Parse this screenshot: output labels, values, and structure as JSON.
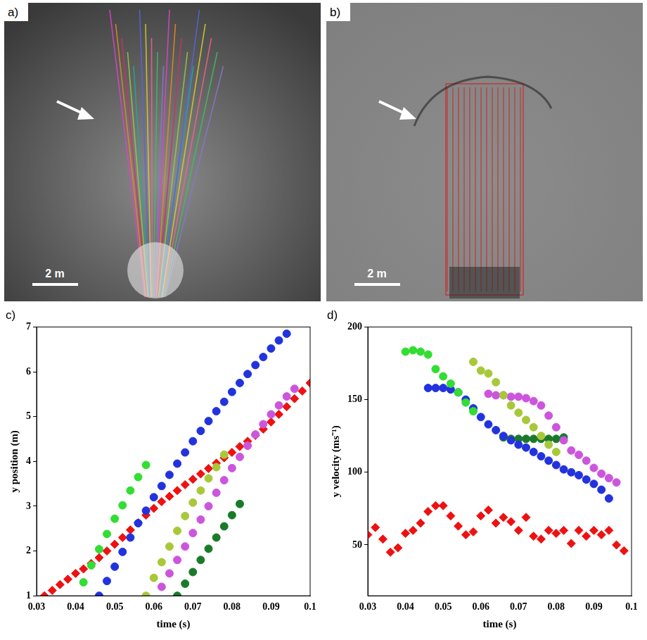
{
  "panels": [
    {
      "letter": "a)",
      "scale_bar": "2 m"
    },
    {
      "letter": "b)",
      "scale_bar": "2 m"
    }
  ],
  "chart_data": [
    {
      "type": "scatter",
      "title": "c)",
      "x_label": "time (s)",
      "y_label": "y position (m)",
      "xlim": [
        0.03,
        0.1
      ],
      "xticks": [
        0.03,
        0.04,
        0.05,
        0.06,
        0.07,
        0.08,
        0.09,
        0.1
      ],
      "ylim": [
        1,
        7
      ],
      "yticks": [
        1,
        2,
        3,
        4,
        5,
        6,
        7
      ],
      "grid": false,
      "series": [
        {
          "color": "#33dd33",
          "marker": "circle",
          "x": [
            0.042,
            0.044,
            0.046,
            0.048,
            0.05,
            0.052,
            0.054,
            0.056,
            0.058
          ],
          "values": [
            1.3,
            1.68,
            2.04,
            2.38,
            2.72,
            3.02,
            3.35,
            3.65,
            3.92
          ]
        },
        {
          "color": "#2233dd",
          "marker": "circle",
          "x": [
            0.046,
            0.048,
            0.05,
            0.052,
            0.054,
            0.056,
            0.058,
            0.06,
            0.062,
            0.064,
            0.066,
            0.068,
            0.07,
            0.072,
            0.074,
            0.076,
            0.078,
            0.08,
            0.082,
            0.084,
            0.086,
            0.088,
            0.09,
            0.092,
            0.094
          ],
          "values": [
            1.0,
            1.33,
            1.65,
            1.98,
            2.3,
            2.62,
            2.9,
            3.2,
            3.45,
            3.7,
            3.95,
            4.2,
            4.45,
            4.68,
            4.9,
            5.12,
            5.33,
            5.55,
            5.75,
            5.95,
            6.15,
            6.33,
            6.52,
            6.7,
            6.85
          ]
        },
        {
          "color": "#a8c83a",
          "marker": "circle",
          "x": [
            0.058,
            0.06,
            0.062,
            0.064,
            0.066,
            0.068,
            0.07,
            0.072,
            0.074,
            0.076,
            0.078
          ],
          "values": [
            1.0,
            1.4,
            1.75,
            2.1,
            2.45,
            2.78,
            3.08,
            3.35,
            3.62,
            3.87,
            4.15
          ]
        },
        {
          "color": "#cc55dd",
          "marker": "circle",
          "x": [
            0.062,
            0.064,
            0.066,
            0.068,
            0.07,
            0.072,
            0.074,
            0.076,
            0.078,
            0.08,
            0.082,
            0.084,
            0.086,
            0.088,
            0.09,
            0.092,
            0.094,
            0.096
          ],
          "values": [
            1.2,
            1.5,
            1.8,
            2.1,
            2.4,
            2.7,
            3.0,
            3.3,
            3.58,
            3.85,
            4.1,
            4.35,
            4.6,
            4.83,
            5.05,
            5.25,
            5.45,
            5.62
          ]
        },
        {
          "color": "#1a7a2a",
          "marker": "circle",
          "x": [
            0.066,
            0.068,
            0.07,
            0.072,
            0.074,
            0.076,
            0.078,
            0.08,
            0.082
          ],
          "values": [
            1.0,
            1.27,
            1.53,
            1.8,
            2.05,
            2.3,
            2.55,
            2.8,
            3.05
          ]
        },
        {
          "color": "#ee1111",
          "marker": "diamond",
          "x": [
            0.032,
            0.034,
            0.036,
            0.038,
            0.04,
            0.042,
            0.044,
            0.046,
            0.048,
            0.05,
            0.052,
            0.054,
            0.056,
            0.058,
            0.06,
            0.062,
            0.064,
            0.066,
            0.068,
            0.07,
            0.072,
            0.074,
            0.076,
            0.078,
            0.08,
            0.082,
            0.084,
            0.086,
            0.088,
            0.09,
            0.092,
            0.094,
            0.096,
            0.098,
            0.1
          ],
          "values": [
            1.0,
            1.12,
            1.25,
            1.37,
            1.5,
            1.6,
            1.72,
            1.85,
            2.0,
            2.15,
            2.3,
            2.47,
            2.63,
            2.8,
            2.95,
            3.1,
            3.22,
            3.35,
            3.48,
            3.6,
            3.72,
            3.84,
            3.96,
            4.08,
            4.2,
            4.33,
            4.45,
            4.58,
            4.72,
            4.88,
            5.05,
            5.22,
            5.4,
            5.57,
            5.75
          ]
        }
      ]
    },
    {
      "type": "scatter",
      "title": "d)",
      "x_label": "time (s)",
      "y_label": "y velocity (ms⁻¹)",
      "xlim": [
        0.03,
        0.1
      ],
      "xticks": [
        0.03,
        0.04,
        0.05,
        0.06,
        0.07,
        0.08,
        0.09,
        0.1
      ],
      "ylim": [
        15,
        200
      ],
      "yticks": [
        50,
        100,
        150,
        200
      ],
      "grid": false,
      "series": [
        {
          "color": "#33dd33",
          "marker": "circle",
          "x": [
            0.04,
            0.042,
            0.044,
            0.046,
            0.048,
            0.05,
            0.052,
            0.054,
            0.056,
            0.058
          ],
          "values": [
            183,
            184,
            183,
            181,
            171,
            166,
            161,
            155,
            148,
            142
          ]
        },
        {
          "color": "#2233dd",
          "marker": "circle",
          "x": [
            0.046,
            0.048,
            0.05,
            0.052,
            0.054,
            0.056,
            0.058,
            0.06,
            0.062,
            0.064,
            0.066,
            0.068,
            0.07,
            0.072,
            0.074,
            0.076,
            0.078,
            0.08,
            0.082,
            0.084,
            0.086,
            0.088,
            0.09,
            0.092,
            0.094
          ],
          "values": [
            158,
            158,
            158,
            157,
            155,
            150,
            144,
            138,
            133,
            129,
            125,
            122,
            119,
            117,
            114,
            111,
            108,
            105,
            102,
            100,
            98,
            95,
            92,
            88,
            82
          ]
        },
        {
          "color": "#a8c83a",
          "marker": "circle",
          "x": [
            0.058,
            0.06,
            0.062,
            0.064,
            0.066,
            0.068,
            0.07,
            0.072,
            0.074,
            0.076,
            0.078,
            0.08
          ],
          "values": [
            176,
            170,
            168,
            162,
            153,
            146,
            141,
            136,
            131,
            125,
            119,
            114
          ]
        },
        {
          "color": "#cc55dd",
          "marker": "circle",
          "x": [
            0.062,
            0.064,
            0.066,
            0.068,
            0.07,
            0.072,
            0.074,
            0.076,
            0.078,
            0.08,
            0.082,
            0.084,
            0.086,
            0.088,
            0.09,
            0.092,
            0.094,
            0.096
          ],
          "values": [
            154,
            153,
            153,
            152,
            152,
            151,
            149,
            146,
            139,
            131,
            122,
            115,
            112,
            108,
            103,
            99,
            96,
            93
          ]
        },
        {
          "color": "#1a7a2a",
          "marker": "circle",
          "x": [
            0.066,
            0.068,
            0.07,
            0.072,
            0.074,
            0.076,
            0.078,
            0.08,
            0.082
          ],
          "values": [
            124,
            123,
            123,
            123,
            123,
            123,
            123,
            123,
            124
          ]
        },
        {
          "color": "#ee1111",
          "marker": "diamond",
          "x": [
            0.03,
            0.032,
            0.034,
            0.036,
            0.038,
            0.04,
            0.042,
            0.044,
            0.046,
            0.048,
            0.05,
            0.052,
            0.054,
            0.056,
            0.058,
            0.06,
            0.062,
            0.064,
            0.066,
            0.068,
            0.07,
            0.072,
            0.074,
            0.076,
            0.078,
            0.08,
            0.082,
            0.084,
            0.086,
            0.088,
            0.09,
            0.092,
            0.094,
            0.096,
            0.098
          ],
          "values": [
            57,
            62,
            54,
            45,
            48,
            58,
            60,
            65,
            73,
            77,
            77,
            70,
            63,
            57,
            59,
            70,
            74,
            65,
            69,
            66,
            60,
            69,
            56,
            54,
            60,
            58,
            60,
            51,
            60,
            56,
            60,
            57,
            60,
            50,
            46
          ]
        }
      ]
    }
  ]
}
